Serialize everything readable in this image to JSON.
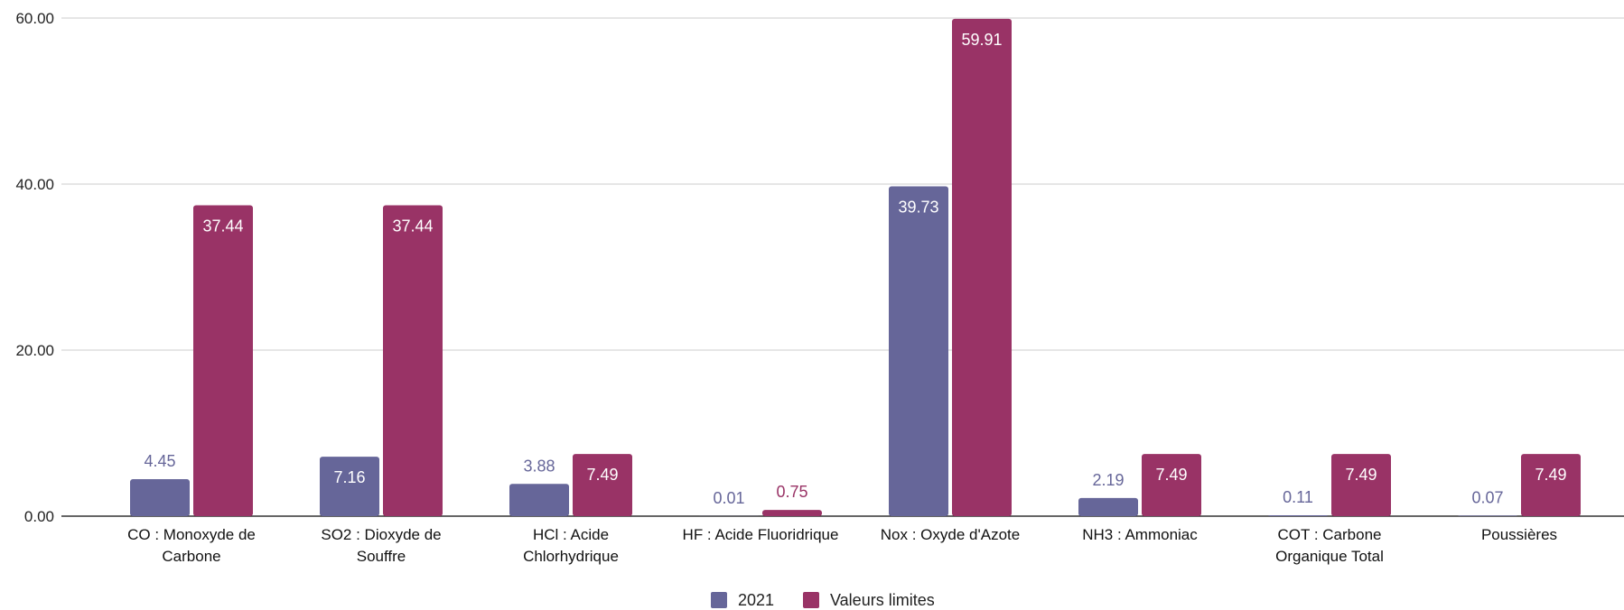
{
  "chart_data": {
    "type": "bar",
    "title": "",
    "xlabel": "",
    "ylabel": "",
    "ylim": [
      0,
      60
    ],
    "yticks": [
      "0.00",
      "20.00",
      "40.00",
      "60.00"
    ],
    "grid": true,
    "legend_position": "bottom",
    "categories": [
      [
        "CO : Monoxyde de",
        "Carbone"
      ],
      [
        "SO2 : Dioxyde de",
        "Souffre"
      ],
      [
        "HCl : Acide",
        "Chlorhydrique"
      ],
      [
        "HF : Acide Fluoridrique"
      ],
      [
        "Nox : Oxyde d'Azote"
      ],
      [
        "NH3 : Ammoniac"
      ],
      [
        "COT  : Carbone",
        "Organique Total"
      ],
      [
        "Poussières"
      ]
    ],
    "series": [
      {
        "name": "2021",
        "color": "#666699",
        "values": [
          4.45,
          7.16,
          3.88,
          0.01,
          39.73,
          2.19,
          0.11,
          0.07
        ],
        "labels": [
          "4.45",
          "7.16",
          "3.88",
          "0.01",
          "39.73",
          "2.19",
          "0.11",
          "0.07"
        ]
      },
      {
        "name": "Valeurs limites",
        "color": "#993366",
        "values": [
          37.44,
          37.44,
          7.49,
          0.75,
          59.91,
          7.49,
          7.49,
          7.49
        ],
        "labels": [
          "37.44",
          "37.44",
          "7.49",
          "0.75",
          "59.91",
          "7.49",
          "7.49",
          "7.49"
        ]
      }
    ]
  }
}
